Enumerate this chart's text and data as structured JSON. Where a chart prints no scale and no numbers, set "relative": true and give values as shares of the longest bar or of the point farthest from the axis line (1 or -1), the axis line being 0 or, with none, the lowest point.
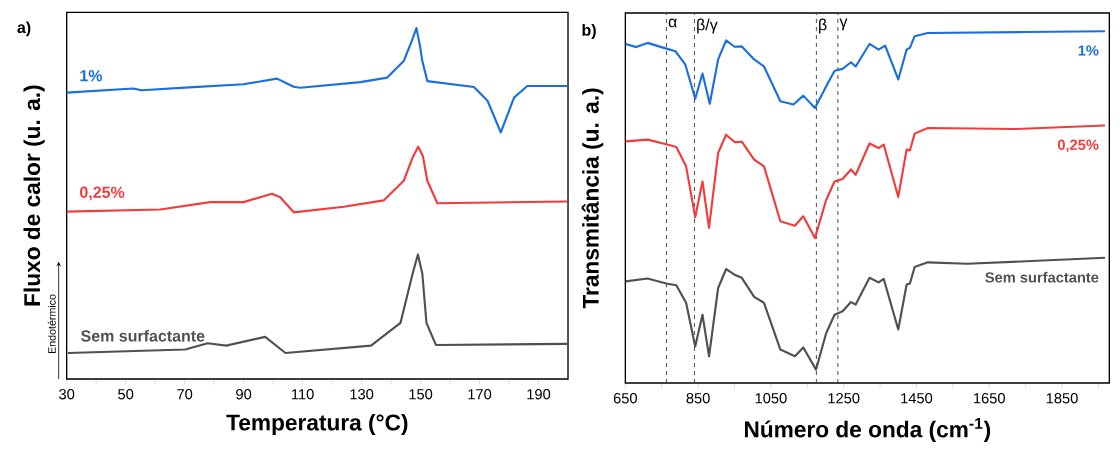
{
  "chart_data": [
    {
      "type": "line",
      "title": "a)",
      "xlabel": "Temperatura (°C)",
      "ylabel": "Fluxo de calor (u. a.)",
      "relative": true,
      "xlim": [
        30,
        200
      ],
      "xticks": [
        30,
        {
          "value": 40,
          "label": null
        },
        50,
        {
          "value": 60,
          "label": null
        },
        70,
        {
          "value": 80,
          "label": null
        },
        90,
        {
          "value": 100,
          "label": null
        },
        110,
        {
          "value": 120,
          "label": null
        },
        130,
        {
          "value": 140,
          "label": null
        },
        150,
        {
          "value": 160,
          "label": null
        },
        170,
        {
          "value": 180,
          "label": null
        },
        190
      ],
      "annotations": [
        "Endotérmico"
      ],
      "series": [
        {
          "name": "1%",
          "color": "#1a6fdf",
          "x": [
            30,
            52.6,
            55.4,
            73,
            90,
            101.3,
            107,
            109.2,
            129.6,
            138.7,
            144.3,
            147,
            148.6,
            149.8,
            150.6,
            152.3,
            168.1,
            172.7,
            177.2,
            181.7,
            186.2,
            199.8
          ],
          "values": [
            0.816,
            0.828,
            0.823,
            0.832,
            0.84,
            0.856,
            0.833,
            0.83,
            0.846,
            0.859,
            0.906,
            0.963,
            1.0,
            0.95,
            0.906,
            0.849,
            0.832,
            0.793,
            0.703,
            0.802,
            0.835,
            0.835
          ]
        },
        {
          "name": "0,25%",
          "color": "#f03c3c",
          "x": [
            30,
            61.7,
            78.7,
            90,
            99.6,
            102.4,
            107,
            124,
            137.5,
            144.3,
            147.5,
            149.2,
            150.8,
            152.3,
            155.7,
            199.8
          ],
          "values": [
            0.477,
            0.483,
            0.504,
            0.504,
            0.528,
            0.518,
            0.475,
            0.491,
            0.509,
            0.565,
            0.635,
            0.662,
            0.635,
            0.565,
            0.501,
            0.506
          ]
        },
        {
          "name": "Sem surfactante",
          "color": "#505050",
          "x": [
            30.4,
            70.2,
            77.8,
            84.1,
            97.3,
            104.2,
            133.2,
            143.2,
            147.3,
            149.1,
            150.6,
            152,
            155.2,
            199.8
          ],
          "values": [
            0.074,
            0.084,
            0.102,
            0.095,
            0.12,
            0.074,
            0.095,
            0.16,
            0.3,
            0.355,
            0.3,
            0.16,
            0.097,
            0.1
          ]
        }
      ]
    },
    {
      "type": "line",
      "title": "b)",
      "xlabel": "Número de onda (cm$^{-1}$)",
      "ylabel": "Transmitância (u. a.)",
      "relative": true,
      "xlim": [
        650,
        1980
      ],
      "xticks": [
        650,
        {
          "value": 750,
          "label": null
        },
        850,
        {
          "value": 950,
          "label": null
        },
        1050,
        {
          "value": 1150,
          "label": null
        },
        1250,
        {
          "value": 1350,
          "label": null
        },
        1450,
        {
          "value": 1550,
          "label": null
        },
        1650,
        {
          "value": 1750,
          "label": null
        },
        1850,
        {
          "value": 1950,
          "label": null
        }
      ],
      "ref_lines": [
        {
          "axis": "x",
          "value": 763,
          "label": "α",
          "color": "#404040",
          "line_style": "dashed"
        },
        {
          "axis": "x",
          "value": 840,
          "label": "β/γ",
          "color": "#404040",
          "line_style": "dashed"
        },
        {
          "axis": "x",
          "value": 1175,
          "label": "β",
          "color": "#404040",
          "line_style": "dashed"
        },
        {
          "axis": "x",
          "value": 1234,
          "label": "γ",
          "color": "#404040",
          "line_style": "dashed"
        }
      ],
      "series": [
        {
          "name": "1%",
          "color": "#1a6fdf",
          "x": [
            651,
            680,
            711,
            765,
            788,
            815,
            842,
            862,
            882,
            905,
            927,
            950,
            970,
            1004,
            1031,
            1076,
            1112,
            1139,
            1171,
            1202,
            1225,
            1247,
            1270,
            1283,
            1321,
            1346,
            1364,
            1400,
            1423,
            1432,
            1445,
            1481,
            1752,
            1968
          ],
          "values": [
            0.964,
            0.955,
            0.967,
            0.95,
            0.943,
            0.905,
            0.808,
            0.88,
            0.794,
            0.92,
            0.974,
            0.956,
            0.957,
            0.92,
            0.9,
            0.801,
            0.792,
            0.817,
            0.782,
            0.844,
            0.888,
            0.893,
            0.912,
            0.9,
            0.964,
            0.948,
            0.959,
            0.863,
            0.948,
            0.953,
            0.986,
            0.995,
            0.998,
            1.0
          ]
        },
        {
          "name": "0,25%",
          "color": "#f03c3c",
          "x": [
            651,
            711,
            765,
            790,
            817,
            842,
            862,
            880,
            905,
            927,
            950,
            970,
            1004,
            1031,
            1076,
            1116,
            1139,
            1171,
            1202,
            1225,
            1247,
            1270,
            1283,
            1321,
            1346,
            1360,
            1400,
            1423,
            1432,
            1445,
            1481,
            1724,
            1968
          ],
          "values": [
            0.687,
            0.692,
            0.678,
            0.671,
            0.616,
            0.471,
            0.573,
            0.441,
            0.654,
            0.706,
            0.685,
            0.686,
            0.635,
            0.616,
            0.46,
            0.447,
            0.474,
            0.412,
            0.521,
            0.573,
            0.58,
            0.607,
            0.592,
            0.681,
            0.668,
            0.678,
            0.529,
            0.664,
            0.661,
            0.709,
            0.725,
            0.722,
            0.732
          ]
        },
        {
          "name": "Sem surfactante",
          "color": "#505050",
          "x": [
            651,
            711,
            765,
            790,
            817,
            842,
            862,
            880,
            905,
            927,
            950,
            970,
            1004,
            1031,
            1076,
            1116,
            1139,
            1174,
            1202,
            1225,
            1247,
            1270,
            1283,
            1321,
            1346,
            1360,
            1400,
            1423,
            1432,
            1445,
            1481,
            1589,
            1752,
            1968
          ],
          "values": [
            0.289,
            0.297,
            0.282,
            0.278,
            0.228,
            0.104,
            0.194,
            0.076,
            0.27,
            0.324,
            0.308,
            0.299,
            0.245,
            0.228,
            0.095,
            0.076,
            0.101,
            0.038,
            0.142,
            0.194,
            0.204,
            0.23,
            0.223,
            0.299,
            0.286,
            0.296,
            0.152,
            0.28,
            0.283,
            0.33,
            0.343,
            0.339,
            0.346,
            0.356
          ]
        }
      ]
    }
  ]
}
